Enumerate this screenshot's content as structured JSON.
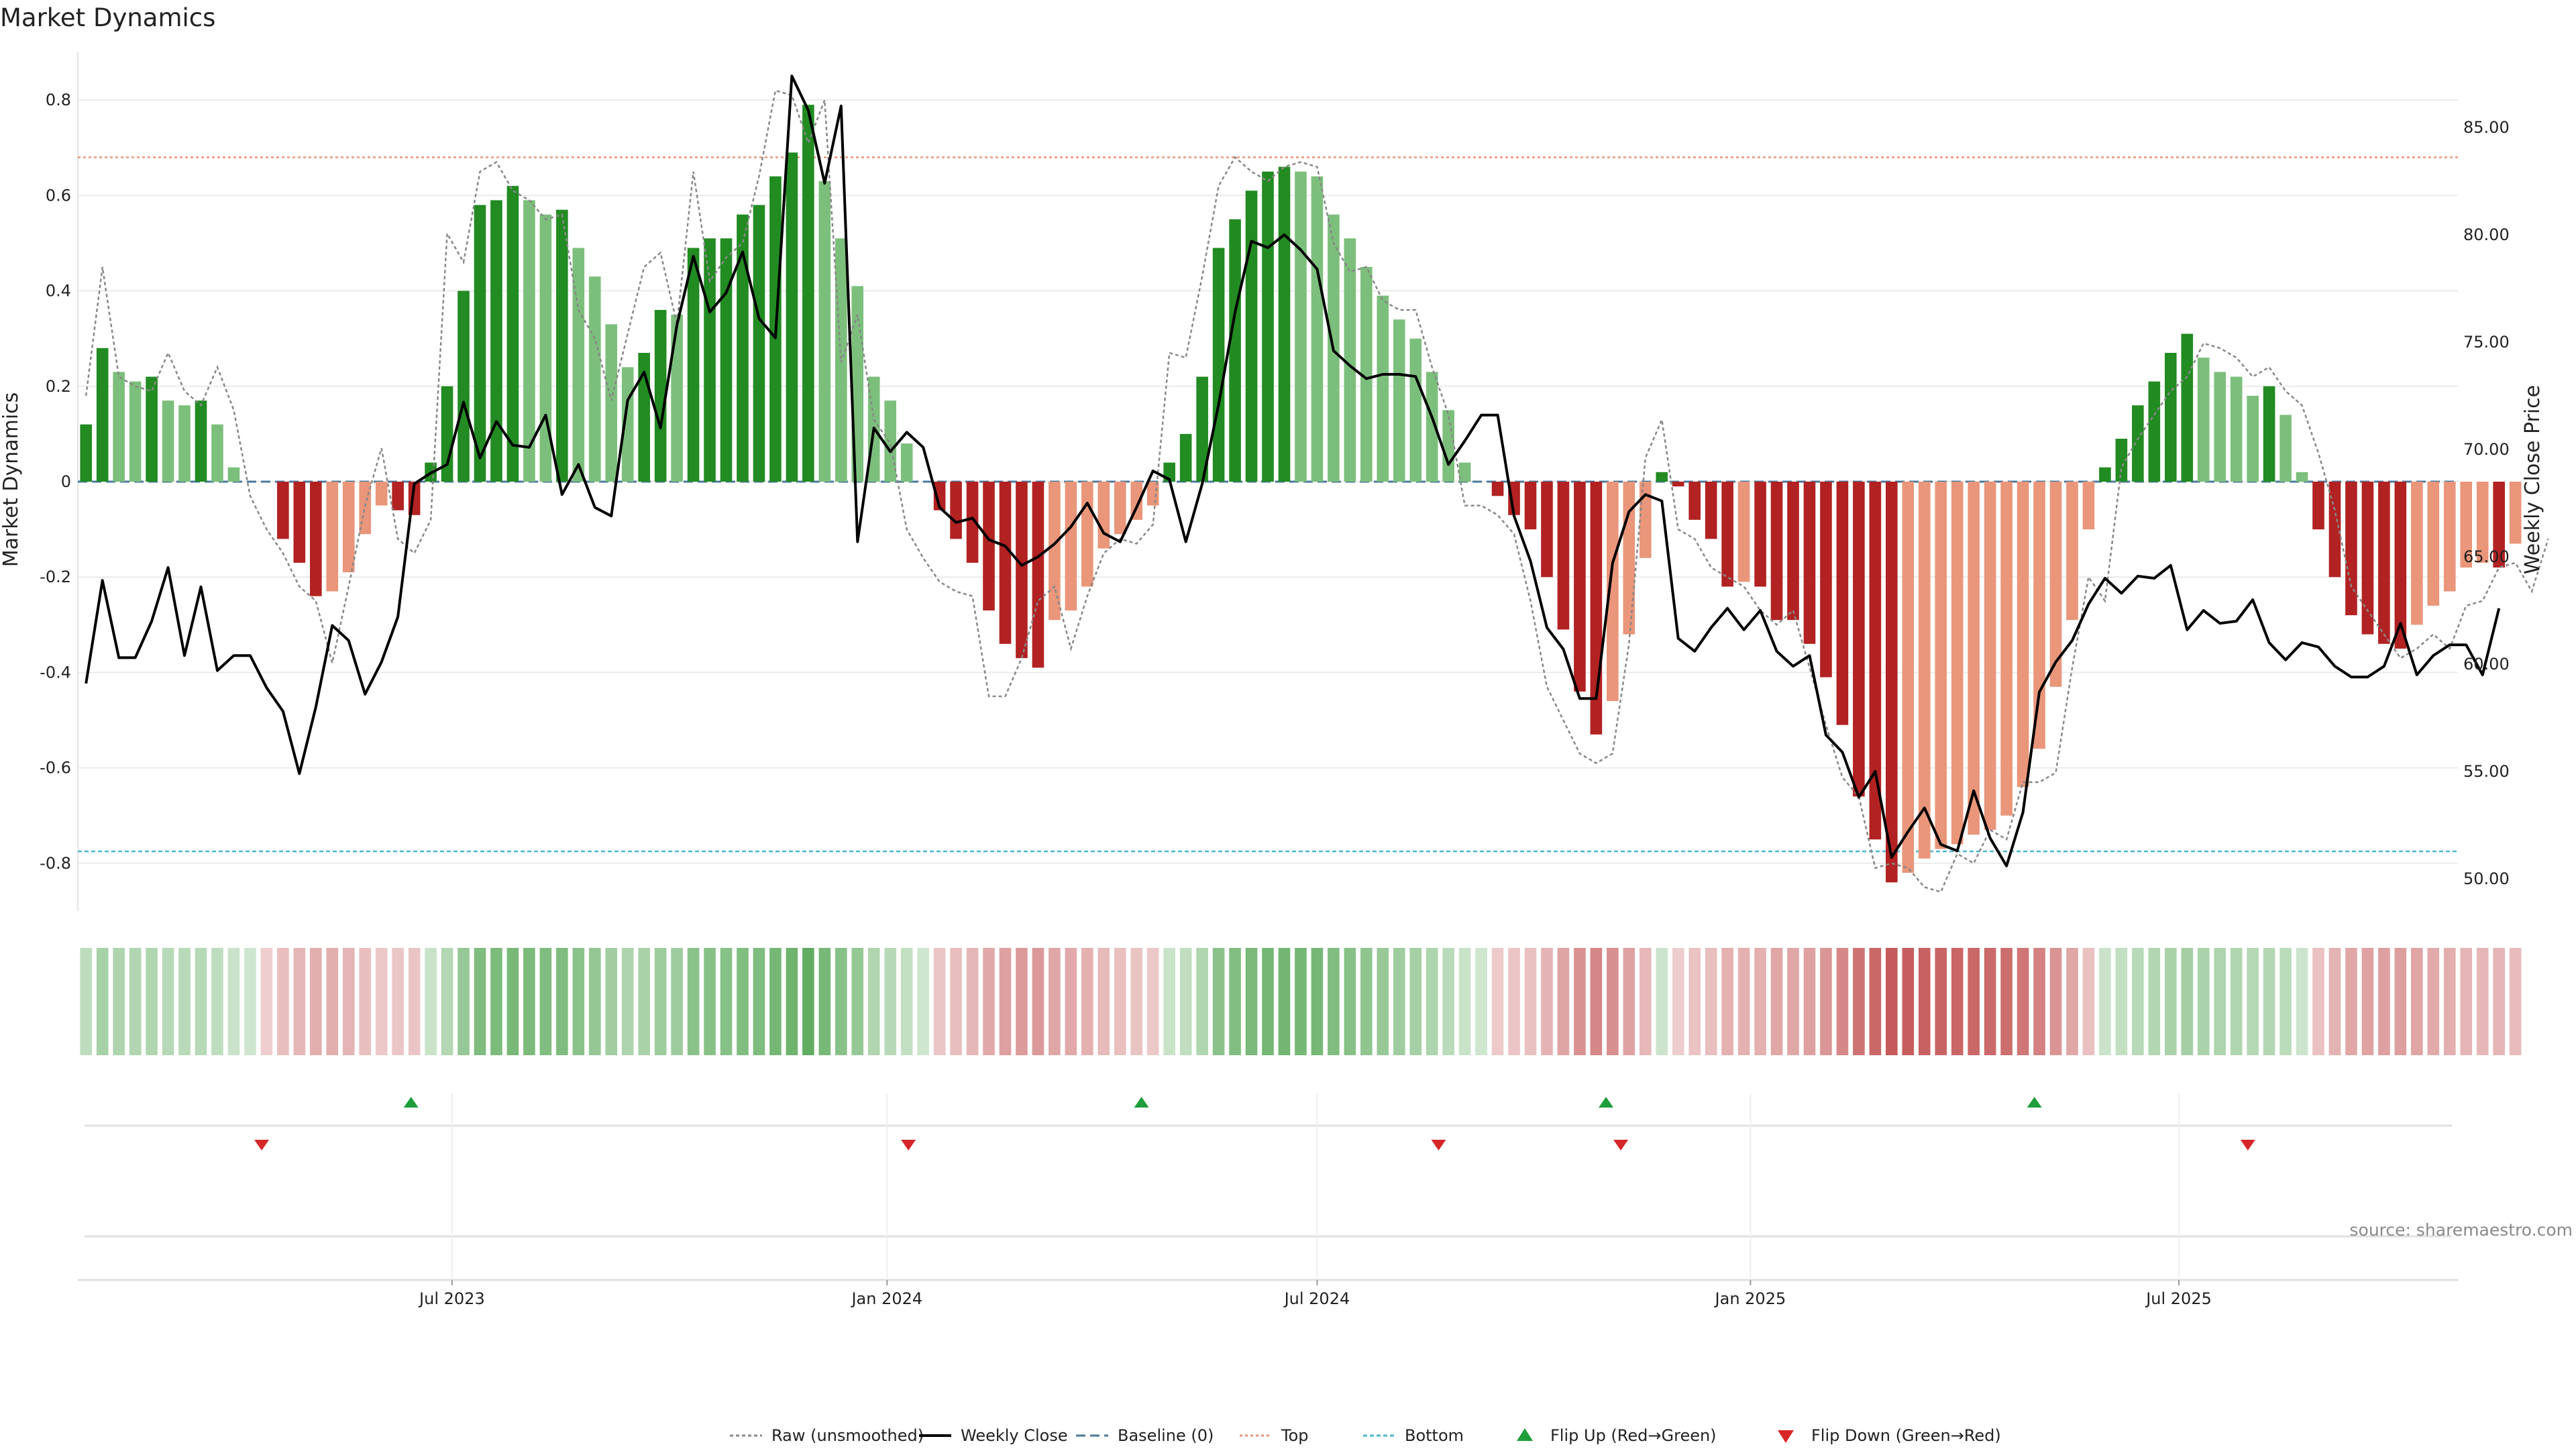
{
  "chart_data": {
    "type": "bar",
    "title": "Market Dynamics",
    "ylabel_left": "Market Dynamics",
    "ylabel_right": "Weekly Close Price",
    "ylim_left": [
      -0.9,
      0.9
    ],
    "ylim_right": [
      48.5,
      88.5
    ],
    "left_ticks": [
      "0.8",
      "0.6",
      "0.4",
      "0.2",
      "0",
      "-0.2",
      "-0.4",
      "-0.6",
      "-0.8"
    ],
    "right_ticks": [
      "85.00",
      "80.00",
      "75.00",
      "70.00",
      "65.00",
      "60.00",
      "55.00",
      "50.00"
    ],
    "xlim": [
      0,
      145
    ],
    "x_ticks": [
      {
        "label": "Jul 2023",
        "week": 22.8
      },
      {
        "label": "Jan 2024",
        "week": 49.3
      },
      {
        "label": "Jul 2024",
        "week": 75.5
      },
      {
        "label": "Jan 2025",
        "week": 101.9
      },
      {
        "label": "Jul 2025",
        "week": 128.0
      }
    ],
    "thresholds": {
      "baseline": 0,
      "top": 0.68,
      "bottom": -0.775
    },
    "colors": {
      "strong_green": "#228b22",
      "light_green": "#7cbf7c",
      "strong_red": "#b22222",
      "light_red": "#e9967a",
      "price": "#000000",
      "raw": "#888888",
      "baseline": "#4a7a9c",
      "top": "#e9967a",
      "bottom": "#4ab7cf",
      "flip_up": "#1f9e3a",
      "flip_down": "#d62728",
      "grid": "#ebebeb"
    },
    "series": [
      {
        "name": "Market Dynamics",
        "values": [
          0.12,
          0.28,
          0.23,
          0.21,
          0.22,
          0.17,
          0.16,
          0.17,
          0.12,
          0.03,
          0,
          0,
          -0.12,
          -0.17,
          -0.24,
          -0.23,
          -0.19,
          -0.11,
          -0.05,
          -0.06,
          -0.07,
          0.04,
          0.2,
          0.4,
          0.58,
          0.59,
          0.62,
          0.59,
          0.56,
          0.57,
          0.49,
          0.43,
          0.33,
          0.24,
          0.27,
          0.36,
          0.35,
          0.49,
          0.51,
          0.51,
          0.56,
          0.58,
          0.64,
          0.69,
          0.79,
          0.63,
          0.51,
          0.41,
          0.22,
          0.17,
          0.08,
          0,
          -0.06,
          -0.12,
          -0.17,
          -0.27,
          -0.34,
          -0.37,
          -0.39,
          -0.29,
          -0.27,
          -0.22,
          -0.14,
          -0.11,
          -0.08,
          -0.05,
          0.04,
          0.1,
          0.22,
          0.49,
          0.55,
          0.61,
          0.65,
          0.66,
          0.65,
          0.64,
          0.56,
          0.51,
          0.45,
          0.39,
          0.34,
          0.3,
          0.23,
          0.15,
          0.04,
          0,
          -0.03,
          -0.07,
          -0.1,
          -0.2,
          -0.31,
          -0.44,
          -0.53,
          -0.46,
          -0.32,
          -0.16,
          0.02,
          -0.01,
          -0.08,
          -0.12,
          -0.22,
          -0.21,
          -0.22,
          -0.29,
          -0.29,
          -0.34,
          -0.41,
          -0.51,
          -0.66,
          -0.75,
          -0.84,
          -0.82,
          -0.79,
          -0.77,
          -0.76,
          -0.74,
          -0.73,
          -0.7,
          -0.64,
          -0.56,
          -0.43,
          -0.29,
          -0.1,
          0.03,
          0.09,
          0.16,
          0.21,
          0.27,
          0.31,
          0.26,
          0.23,
          0.22,
          0.18,
          0.2,
          0.14,
          0.02,
          -0.1,
          -0.2,
          -0.28,
          -0.32,
          -0.34,
          -0.35,
          -0.3,
          -0.26,
          -0.23,
          -0.18,
          -0.17,
          -0.18,
          -0.13
        ]
      },
      {
        "name": "Raw (unsmoothed)",
        "values": [
          0.18,
          0.45,
          0.22,
          0.2,
          0.19,
          0.27,
          0.19,
          0.16,
          0.24,
          0.15,
          -0.03,
          -0.1,
          -0.15,
          -0.22,
          -0.25,
          -0.38,
          -0.22,
          -0.05,
          0.07,
          -0.12,
          -0.15,
          -0.08,
          0.52,
          0.46,
          0.65,
          0.67,
          0.61,
          0.59,
          0.55,
          0.56,
          0.36,
          0.3,
          0.17,
          0.31,
          0.45,
          0.48,
          0.33,
          0.65,
          0.42,
          0.47,
          0.5,
          0.64,
          0.82,
          0.81,
          0.71,
          0.8,
          0.25,
          0.35,
          0.13,
          0.08,
          -0.1,
          -0.16,
          -0.21,
          -0.23,
          -0.24,
          -0.45,
          -0.45,
          -0.37,
          -0.25,
          -0.22,
          -0.35,
          -0.24,
          -0.15,
          -0.12,
          -0.13,
          -0.09,
          0.27,
          0.26,
          0.43,
          0.62,
          0.68,
          0.65,
          0.63,
          0.66,
          0.67,
          0.66,
          0.5,
          0.44,
          0.45,
          0.38,
          0.36,
          0.36,
          0.24,
          0.14,
          -0.05,
          -0.05,
          -0.07,
          -0.11,
          -0.25,
          -0.43,
          -0.5,
          -0.57,
          -0.59,
          -0.57,
          -0.34,
          0.05,
          0.13,
          -0.1,
          -0.12,
          -0.18,
          -0.2,
          -0.22,
          -0.27,
          -0.3,
          -0.27,
          -0.39,
          -0.51,
          -0.62,
          -0.66,
          -0.81,
          -0.8,
          -0.81,
          -0.85,
          -0.86,
          -0.78,
          -0.8,
          -0.73,
          -0.75,
          -0.63,
          -0.63,
          -0.61,
          -0.39,
          -0.2,
          -0.25,
          0.03,
          0.09,
          0.14,
          0.19,
          0.22,
          0.29,
          0.28,
          0.26,
          0.22,
          0.24,
          0.19,
          0.16,
          0.06,
          -0.06,
          -0.22,
          -0.27,
          -0.32,
          -0.37,
          -0.35,
          -0.32,
          -0.35,
          -0.26,
          -0.25,
          -0.18,
          -0.17,
          -0.23,
          -0.12
        ]
      },
      {
        "name": "Weekly Close",
        "values": [
          59.1,
          63.9,
          60.3,
          60.3,
          62,
          64.5,
          60.4,
          63.6,
          59.7,
          60.4,
          60.4,
          58.9,
          57.8,
          54.9,
          58,
          61.8,
          61.1,
          58.6,
          60.1,
          62.2,
          68.4,
          68.9,
          69.3,
          72.2,
          69.6,
          71.3,
          70.2,
          70.1,
          71.6,
          67.9,
          69.3,
          67.3,
          66.9,
          72.3,
          73.6,
          71,
          75.8,
          79,
          76.4,
          77.3,
          79.2,
          76.1,
          75.2,
          87.4,
          85.8,
          82.4,
          86,
          65.7,
          71,
          69.9,
          70.8,
          70.1,
          67.3,
          66.6,
          66.8,
          65.8,
          65.5,
          64.6,
          65,
          65.6,
          66.4,
          67.5,
          66.1,
          65.7,
          67.3,
          69,
          68.6,
          65.7,
          68.4,
          72.1,
          76.4,
          79.7,
          79.4,
          80,
          79.3,
          78.4,
          74.6,
          73.9,
          73.3,
          73.5,
          73.5,
          73.4,
          71.5,
          69.3,
          70.4,
          71.6,
          71.6,
          66.9,
          64.8,
          61.7,
          60.7,
          58.4,
          58.4,
          64.7,
          67.1,
          67.9,
          67.6,
          61.2,
          60.6,
          61.7,
          62.6,
          61.6,
          62.5,
          60.6,
          59.9,
          60.4,
          56.7,
          55.9,
          53.8,
          55,
          51,
          52.2,
          53.3,
          51.6,
          51.3,
          54.1,
          51.9,
          50.6,
          53.1,
          58.7,
          60.1,
          61.1,
          62.8,
          64,
          63.3,
          64.1,
          64,
          64.6,
          61.6,
          62.5,
          61.9,
          62,
          63,
          61,
          60.2,
          61,
          60.8,
          59.9,
          59.4,
          59.4,
          59.9,
          61.9,
          59.5,
          60.4,
          60.9,
          60.9,
          59.5,
          62.6
        ]
      }
    ],
    "flips": {
      "up": [
        20.3,
        64.8,
        93.1,
        119.2
      ],
      "down": [
        11.2,
        50.6,
        82.9,
        94.0,
        132.2
      ]
    },
    "legend": [
      {
        "label": "Raw (unsmoothed)",
        "marker": "dotted-line"
      },
      {
        "label": "Weekly Close",
        "marker": "solid-line"
      },
      {
        "label": "Baseline (0)",
        "marker": "dashed-line"
      },
      {
        "label": "Top",
        "marker": "dotted-line-top"
      },
      {
        "label": "Bottom",
        "marker": "dotted-line-bottom"
      },
      {
        "label": "Flip Up (Red→Green)",
        "marker": "triangle-up"
      },
      {
        "label": "Flip Down (Green→Red)",
        "marker": "triangle-down"
      }
    ],
    "legend_position": "bottom-center",
    "source": "source: sharemaestro.com"
  }
}
